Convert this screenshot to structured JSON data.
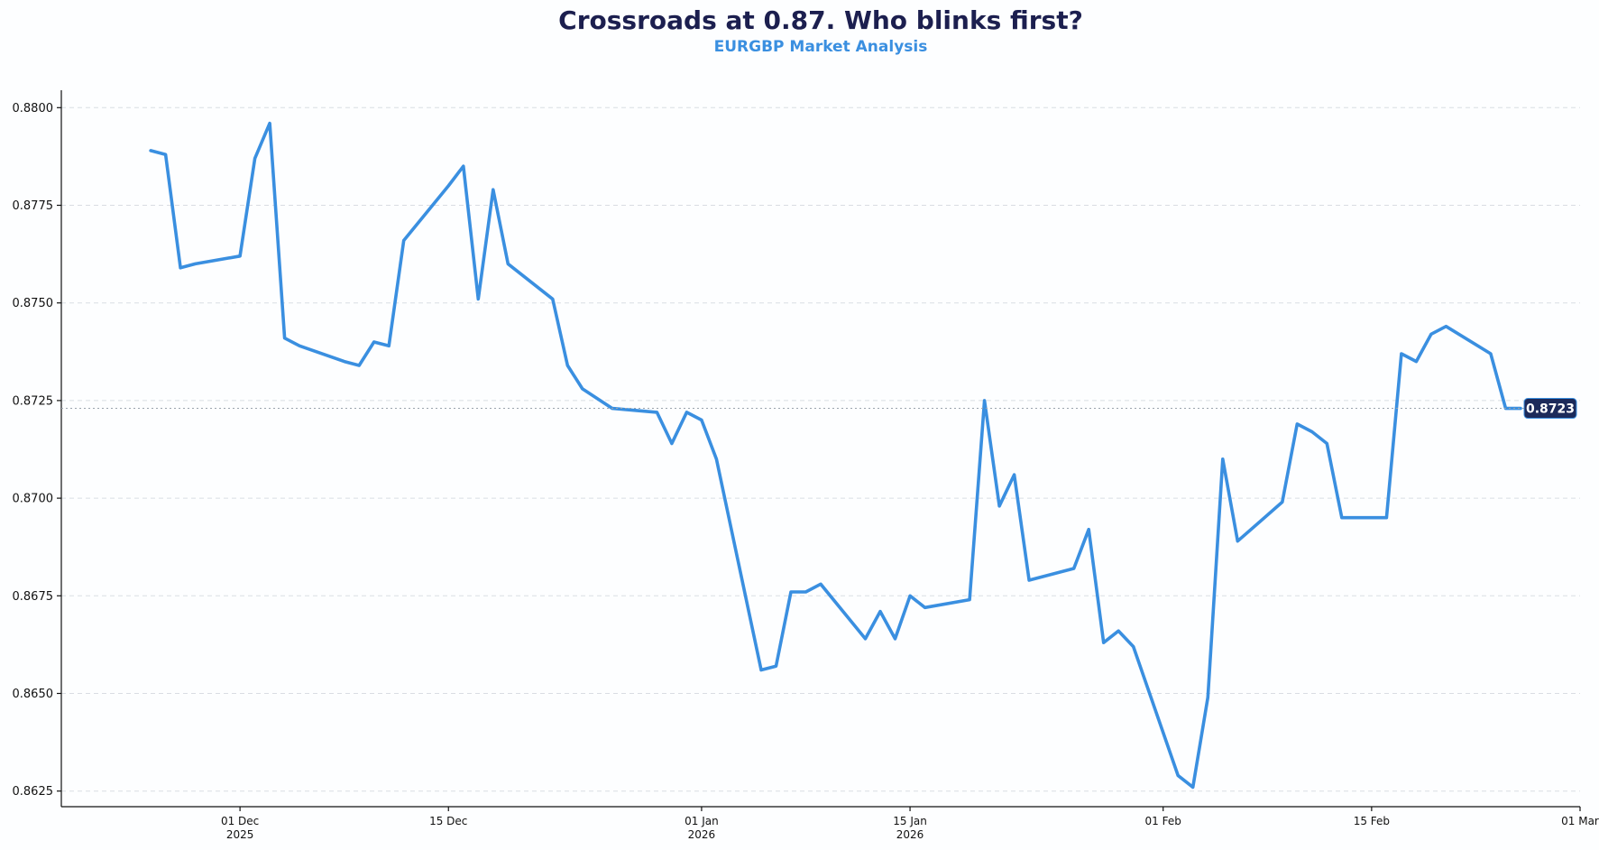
{
  "chart_data": {
    "type": "line",
    "title": "Crossroads at 0.87. Who blinks first?",
    "subtitle": "EURGBP Market Analysis",
    "xlabel": "",
    "ylabel": "",
    "xlim": [
      "2025-11-19",
      "2026-03-01"
    ],
    "ylim": [
      0.8621,
      0.8804
    ],
    "grid": "y",
    "series_color": "#3a8fe0",
    "y_ticks": [
      {
        "value": 0.8625,
        "label": "0.8625"
      },
      {
        "value": 0.865,
        "label": "0.8650"
      },
      {
        "value": 0.8675,
        "label": "0.8675"
      },
      {
        "value": 0.87,
        "label": "0.8700"
      },
      {
        "value": 0.8725,
        "label": "0.8725"
      },
      {
        "value": 0.875,
        "label": "0.8750"
      },
      {
        "value": 0.8775,
        "label": "0.8775"
      },
      {
        "value": 0.88,
        "label": "0.8800"
      }
    ],
    "x_ticks": [
      {
        "date": "2025-12-01",
        "label": "01 Dec",
        "sublabel": "2025"
      },
      {
        "date": "2025-12-15",
        "label": "15 Dec",
        "sublabel": ""
      },
      {
        "date": "2026-01-01",
        "label": "01 Jan",
        "sublabel": "2026"
      },
      {
        "date": "2026-01-15",
        "label": "15 Jan",
        "sublabel": "2026"
      },
      {
        "date": "2026-02-01",
        "label": "01 Feb",
        "sublabel": ""
      },
      {
        "date": "2026-02-15",
        "label": "15 Feb",
        "sublabel": ""
      },
      {
        "date": "2026-03-01",
        "label": "01 Mar",
        "sublabel": ""
      }
    ],
    "last_value_label": "0.8723",
    "series": [
      {
        "x": [
          "2025-11-25",
          "2025-11-26",
          "2025-11-27",
          "2025-11-28",
          "2025-12-01",
          "2025-12-02",
          "2025-12-03",
          "2025-12-04",
          "2025-12-05",
          "2025-12-08",
          "2025-12-09",
          "2025-12-10",
          "2025-12-11",
          "2025-12-12",
          "2025-12-15",
          "2025-12-16",
          "2025-12-17",
          "2025-12-18",
          "2025-12-19",
          "2025-12-22",
          "2025-12-23",
          "2025-12-24",
          "2025-12-26",
          "2025-12-29",
          "2025-12-30",
          "2025-12-31",
          "2026-01-01",
          "2026-01-02",
          "2026-01-05",
          "2026-01-06",
          "2026-01-07",
          "2026-01-08",
          "2026-01-09",
          "2026-01-12",
          "2026-01-13",
          "2026-01-14",
          "2026-01-15",
          "2026-01-16",
          "2026-01-19",
          "2026-01-20",
          "2026-01-21",
          "2026-01-22",
          "2026-01-23",
          "2026-01-26",
          "2026-01-27",
          "2026-01-28",
          "2026-01-29",
          "2026-01-30",
          "2026-02-02",
          "2026-02-03",
          "2026-02-04",
          "2026-02-05",
          "2026-02-06",
          "2026-02-09",
          "2026-02-10",
          "2026-02-11",
          "2026-02-12",
          "2026-02-13",
          "2026-02-16",
          "2026-02-17",
          "2026-02-18",
          "2026-02-19",
          "2026-02-20",
          "2026-02-23",
          "2026-02-24",
          "2026-02-25"
        ],
        "y": [
          0.8789,
          0.8788,
          0.8759,
          0.876,
          0.8762,
          0.8787,
          0.8796,
          0.8741,
          0.8739,
          0.8735,
          0.8734,
          0.874,
          0.8739,
          0.8766,
          0.878,
          0.8785,
          0.8751,
          0.8779,
          0.876,
          0.8751,
          0.8734,
          0.8728,
          0.8723,
          0.8722,
          0.8714,
          0.8722,
          0.872,
          0.871,
          0.8656,
          0.8657,
          0.8676,
          0.8676,
          0.8678,
          0.8664,
          0.8671,
          0.8664,
          0.8675,
          0.8672,
          0.8674,
          0.8725,
          0.8698,
          0.8706,
          0.8679,
          0.8682,
          0.8692,
          0.8663,
          0.8666,
          0.8662,
          0.8629,
          0.8626,
          0.8649,
          0.871,
          0.8689,
          0.8699,
          0.8719,
          0.8717,
          0.8714,
          0.8695,
          0.8695,
          0.8737,
          0.8735,
          0.8742,
          0.8744,
          0.8737,
          0.8723,
          0.8723
        ]
      }
    ]
  }
}
